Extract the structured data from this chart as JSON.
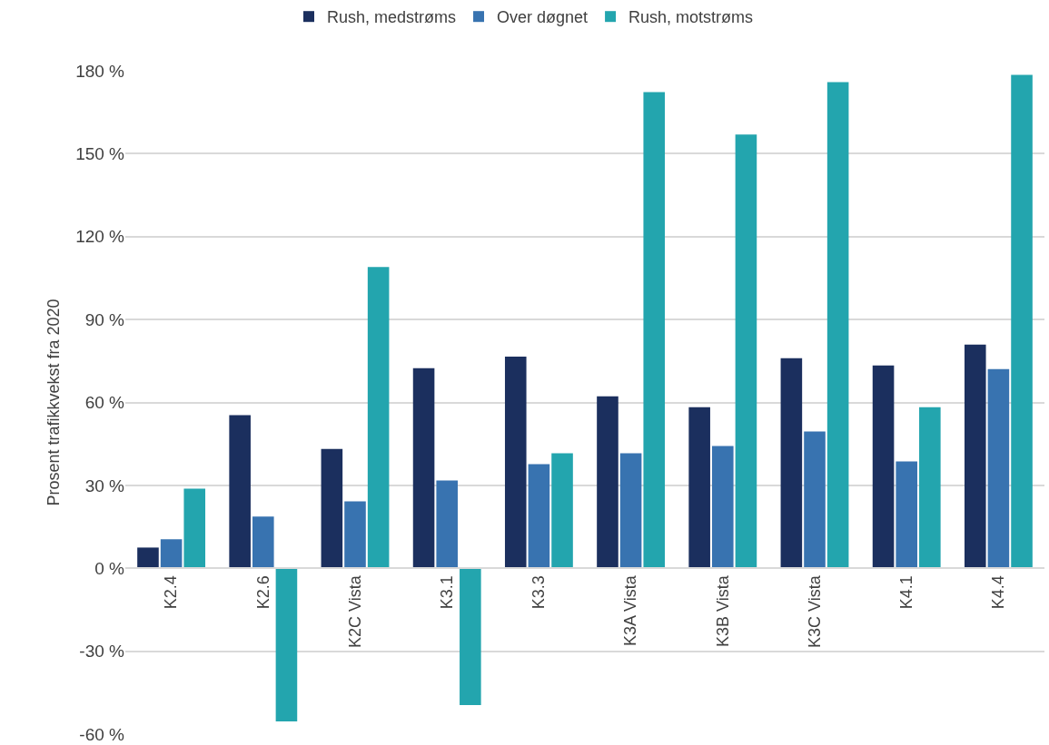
{
  "chart_data": {
    "type": "bar",
    "ylabel": "Prosent trafikkvekst fra 2020",
    "categories": [
      "K2.4",
      "K2.6",
      "K2C Vista",
      "K3.1",
      "K3.3",
      "K3A Vista",
      "K3B Vista",
      "K3C Vista",
      "K4.1",
      "K4.4"
    ],
    "series": [
      {
        "name": "Rush, medstrøms",
        "color": "#1b2f5e",
        "values": [
          7.5,
          55.4,
          43.2,
          72.4,
          76.6,
          62.2,
          58.3,
          76,
          73.4,
          80.9
        ]
      },
      {
        "name": "Over døgnet",
        "color": "#3873b0",
        "values": [
          10.5,
          18.7,
          24.2,
          31.8,
          37.7,
          41.6,
          44.2,
          49.5,
          38.7,
          72.1
        ]
      },
      {
        "name": "Rush, motstrøms",
        "color": "#23a5ae",
        "values": [
          28.8,
          -55.4,
          109,
          -49.5,
          41.6,
          172.3,
          156.9,
          175.9,
          58.3,
          178.5
        ]
      }
    ],
    "ylim": [
      -60,
      180
    ],
    "yticks": [
      {
        "value": -60,
        "label": "-60 %"
      },
      {
        "value": -30,
        "label": "-30 %"
      },
      {
        "value": 0,
        "label": "0 %"
      },
      {
        "value": 30,
        "label": "30 %"
      },
      {
        "value": 60,
        "label": "60 %"
      },
      {
        "value": 90,
        "label": "90 %"
      },
      {
        "value": 120,
        "label": "120 %"
      },
      {
        "value": 150,
        "label": "150 %"
      },
      {
        "value": 180,
        "label": "180 %"
      }
    ],
    "grid": "y",
    "legend": "top"
  }
}
